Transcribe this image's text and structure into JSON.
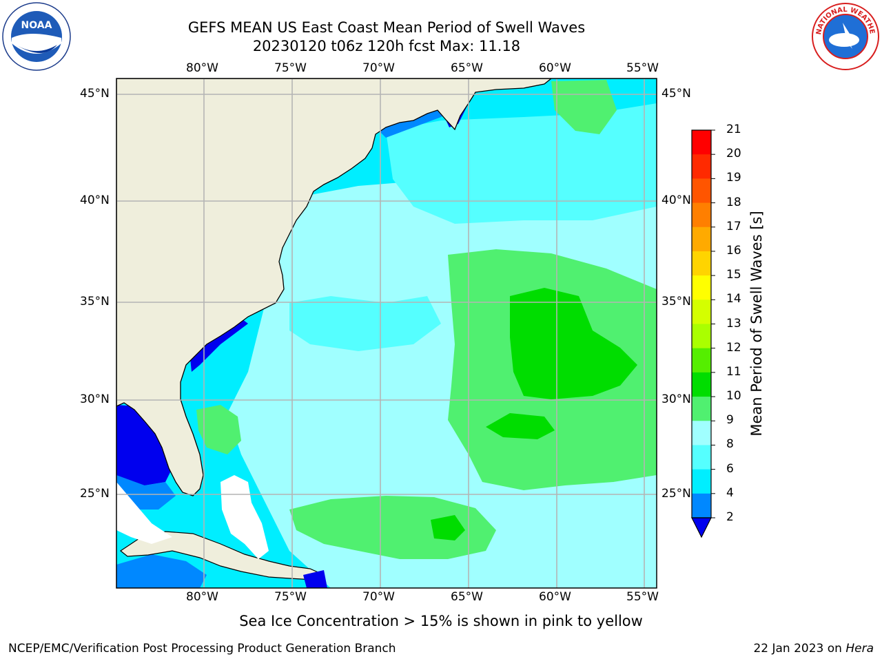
{
  "header": {
    "title_line1": "GEFS MEAN US East Coast Mean Period of Swell Waves",
    "title_line2": "20230120 t06z 120h fcst   Max: 11.18"
  },
  "logos": {
    "noaa_text": "NOAA",
    "nws_text": "NATIONAL WEATHER SERVICE"
  },
  "map": {
    "lon_labels_top": [
      "80°W",
      "75°W",
      "70°W",
      "65°W",
      "60°W",
      "55°W"
    ],
    "lon_labels_bottom": [
      "80°W",
      "75°W",
      "70°W",
      "65°W",
      "60°W",
      "55°W"
    ],
    "lat_labels_left": [
      "45°N",
      "40°N",
      "35°N",
      "30°N",
      "25°N"
    ],
    "lat_labels_right": [
      "45°N",
      "40°N",
      "35°N",
      "30°N",
      "25°N"
    ]
  },
  "colorbar": {
    "label": "Mean Period of Swell Waves [s]",
    "ticks": [
      "21",
      "20",
      "19",
      "18",
      "17",
      "16",
      "15",
      "14",
      "13",
      "12",
      "11",
      "10",
      "9",
      "8",
      "6",
      "4",
      "2"
    ],
    "colors_top_to_bottom": [
      "#ff0000",
      "#ff2a00",
      "#ff5500",
      "#ff7f00",
      "#ffaa00",
      "#ffd400",
      "#ffff00",
      "#d4ff00",
      "#aaff00",
      "#55ee00",
      "#00dd00",
      "#50f070",
      "#a0ffff",
      "#55ffff",
      "#00eeff",
      "#0088ff",
      "#0000ee"
    ],
    "under_color": "#0000ee"
  },
  "footer": {
    "note": "Sea Ice Concentration > 15% is shown in pink to yellow",
    "credit": "NCEP/EMC/Verification Post Processing Product Generation Branch",
    "date": "22 Jan 2023 on ",
    "machine": "Hera"
  }
}
